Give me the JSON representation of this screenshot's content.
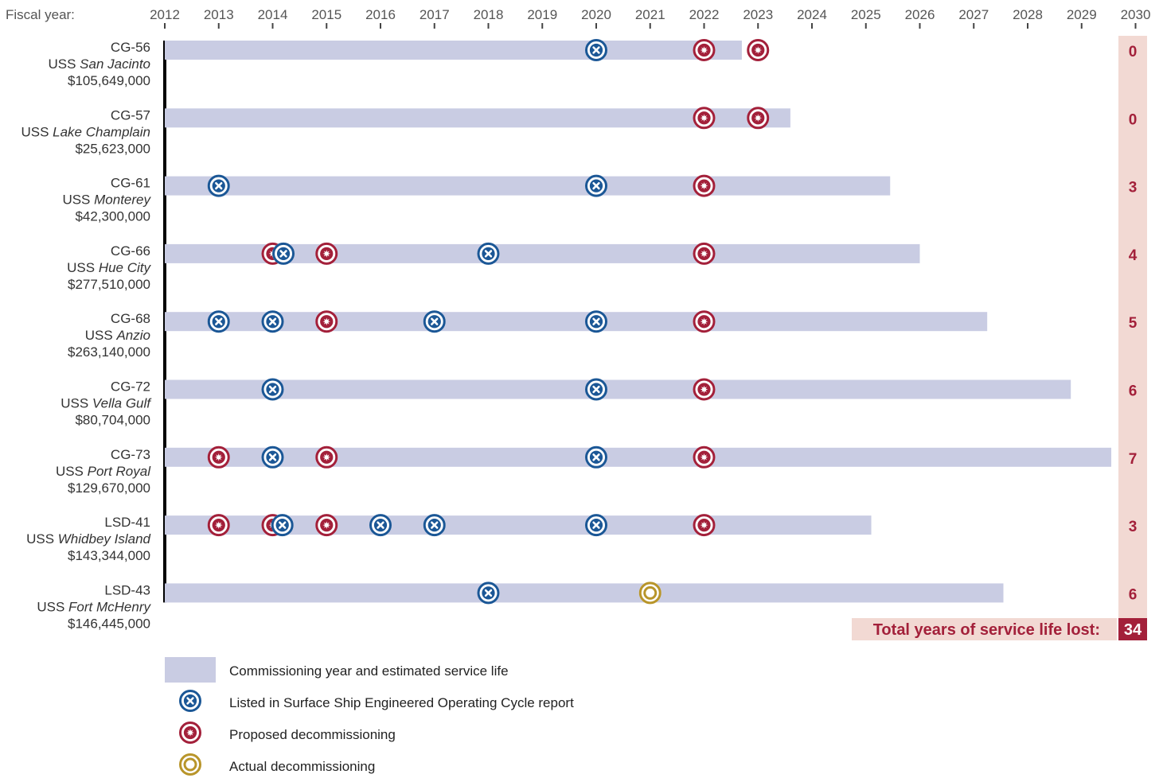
{
  "chart_data": {
    "type": "timeline",
    "x_axis_label": "Fiscal year:",
    "x_range": [
      2012,
      2030
    ],
    "years": [
      2012,
      2013,
      2014,
      2015,
      2016,
      2017,
      2018,
      2019,
      2020,
      2021,
      2022,
      2023,
      2024,
      2025,
      2026,
      2027,
      2028,
      2029,
      2030
    ],
    "ships": [
      {
        "hull": "CG-56",
        "prefix": "USS ",
        "name": "San Jacinto",
        "cost": "$105,649,000",
        "service_life_end": 2022.7,
        "events": [
          {
            "type": "sseoc",
            "year": 2020
          },
          {
            "type": "proposed",
            "year": 2022
          },
          {
            "type": "proposed",
            "year": 2023
          }
        ],
        "years_lost": "0"
      },
      {
        "hull": "CG-57",
        "prefix": "USS ",
        "name": "Lake Champlain",
        "cost": "$25,623,000",
        "service_life_end": 2023.6,
        "events": [
          {
            "type": "proposed",
            "year": 2022
          },
          {
            "type": "proposed",
            "year": 2023
          }
        ],
        "years_lost": "0"
      },
      {
        "hull": "CG-61",
        "prefix": "USS ",
        "name": "Monterey",
        "cost": "$42,300,000",
        "service_life_end": 2025.45,
        "events": [
          {
            "type": "sseoc",
            "year": 2013
          },
          {
            "type": "sseoc",
            "year": 2020
          },
          {
            "type": "proposed",
            "year": 2022
          }
        ],
        "years_lost": "3"
      },
      {
        "hull": "CG-66",
        "prefix": "USS ",
        "name": "Hue City",
        "cost": "$277,510,000",
        "service_life_end": 2026.0,
        "events": [
          {
            "type": "proposed",
            "year": 2014
          },
          {
            "type": "sseoc",
            "year": 2014.2
          },
          {
            "type": "proposed",
            "year": 2015
          },
          {
            "type": "sseoc",
            "year": 2018
          },
          {
            "type": "proposed",
            "year": 2022
          }
        ],
        "years_lost": "4"
      },
      {
        "hull": "CG-68",
        "prefix": "USS ",
        "name": "Anzio",
        "cost": "$263,140,000",
        "service_life_end": 2027.25,
        "events": [
          {
            "type": "sseoc",
            "year": 2013
          },
          {
            "type": "sseoc",
            "year": 2014
          },
          {
            "type": "proposed",
            "year": 2015
          },
          {
            "type": "sseoc",
            "year": 2017
          },
          {
            "type": "sseoc",
            "year": 2020
          },
          {
            "type": "proposed",
            "year": 2022
          }
        ],
        "years_lost": "5"
      },
      {
        "hull": "CG-72",
        "prefix": "USS ",
        "name": "Vella Gulf",
        "cost": "$80,704,000",
        "service_life_end": 2028.8,
        "events": [
          {
            "type": "sseoc",
            "year": 2014
          },
          {
            "type": "sseoc",
            "year": 2020
          },
          {
            "type": "proposed",
            "year": 2022
          }
        ],
        "years_lost": "6"
      },
      {
        "hull": "CG-73",
        "prefix": "USS ",
        "name": "Port Royal",
        "cost": "$129,670,000",
        "service_life_end": 2029.55,
        "events": [
          {
            "type": "proposed",
            "year": 2013
          },
          {
            "type": "sseoc",
            "year": 2014
          },
          {
            "type": "proposed",
            "year": 2015
          },
          {
            "type": "sseoc",
            "year": 2020
          },
          {
            "type": "proposed",
            "year": 2022
          }
        ],
        "years_lost": "7"
      },
      {
        "hull": "LSD-41",
        "prefix": "USS ",
        "name": "Whidbey Island",
        "cost": "$143,344,000",
        "service_life_end": 2025.1,
        "events": [
          {
            "type": "proposed",
            "year": 2013
          },
          {
            "type": "proposed",
            "year": 2014
          },
          {
            "type": "sseoc",
            "year": 2014.18
          },
          {
            "type": "proposed",
            "year": 2015
          },
          {
            "type": "sseoc",
            "year": 2016
          },
          {
            "type": "sseoc",
            "year": 2017
          },
          {
            "type": "sseoc",
            "year": 2020
          },
          {
            "type": "proposed",
            "year": 2022
          }
        ],
        "years_lost": "3"
      },
      {
        "hull": "LSD-43",
        "prefix": "USS ",
        "name": "Fort McHenry",
        "cost": "$146,445,000",
        "service_life_end": 2027.55,
        "events": [
          {
            "type": "sseoc",
            "year": 2018
          },
          {
            "type": "actual",
            "year": 2021
          }
        ],
        "years_lost": "6"
      }
    ],
    "total_label": "Total years of service life lost:",
    "total_value": "34",
    "legend": [
      {
        "key": "bar",
        "label": "Commissioning year and estimated service life"
      },
      {
        "key": "sseoc",
        "label": "Listed in Surface Ship Engineered Operating Cycle report"
      },
      {
        "key": "proposed",
        "label": "Proposed decommissioning"
      },
      {
        "key": "actual",
        "label": "Actual decommissioning"
      }
    ],
    "colors": {
      "bar": "#c9cce3",
      "sseoc": "#1b5796",
      "proposed": "#a3203a",
      "actual": "#b8952a",
      "lost_column": "#f2d9d3",
      "lost_text": "#a3203a",
      "total_box": "#a3203a",
      "axis_text": "#555555"
    },
    "grid": false
  }
}
